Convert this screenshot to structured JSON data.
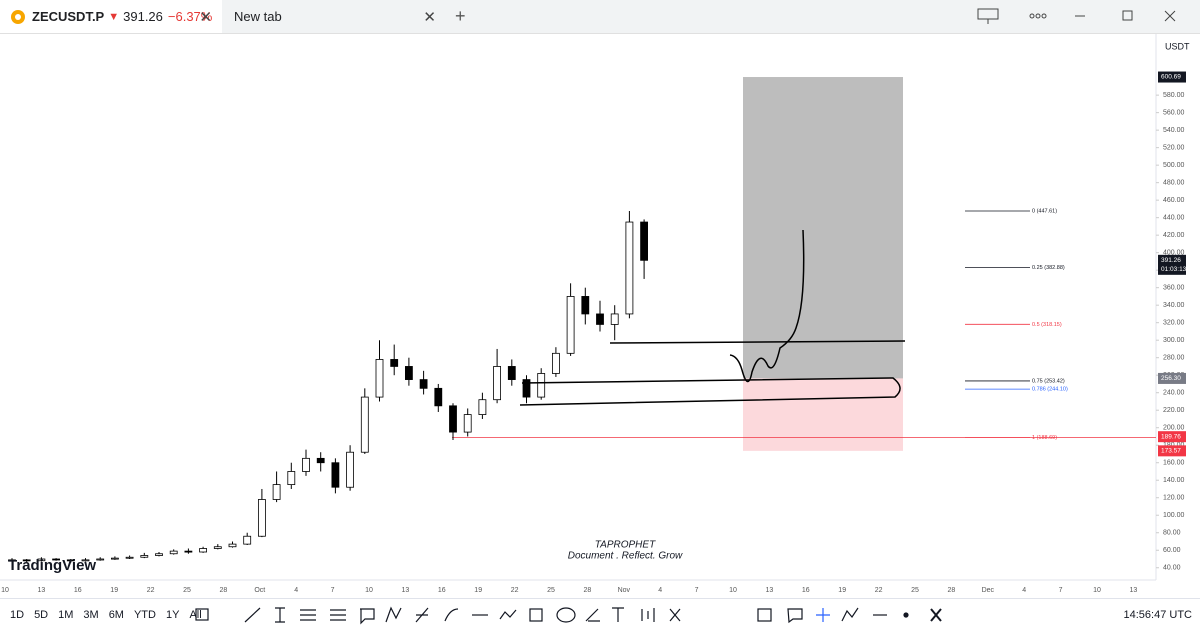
{
  "browser": {
    "tabs": [
      {
        "symbol": "ZECUSDT.P",
        "direction": "▼",
        "price": "391.26",
        "change": "−6.37%"
      },
      {
        "title": "New tab"
      }
    ]
  },
  "chart_data": {
    "type": "candlestick",
    "currency": "USDT",
    "open": [
      48,
      49,
      48,
      50,
      49,
      48,
      49,
      50,
      51,
      52,
      54,
      56,
      59,
      58,
      62,
      64,
      67,
      76,
      118,
      135,
      150,
      165,
      160,
      132,
      172,
      235,
      278,
      270,
      255,
      245,
      225,
      195,
      215,
      232,
      270,
      255,
      235,
      262,
      285,
      350,
      330,
      318,
      330,
      435
    ],
    "high": [
      51,
      50,
      52,
      51,
      50,
      51,
      52,
      53,
      54,
      57,
      58,
      61,
      62,
      64,
      67,
      70,
      80,
      130,
      150,
      160,
      175,
      172,
      165,
      180,
      245,
      300,
      295,
      280,
      265,
      250,
      228,
      222,
      240,
      290,
      278,
      260,
      268,
      292,
      365,
      360,
      345,
      340,
      447.61,
      438
    ],
    "low": [
      47,
      46,
      47,
      48,
      46,
      47,
      48,
      49,
      50,
      51,
      53,
      55,
      56,
      57,
      61,
      63,
      66,
      75,
      115,
      130,
      145,
      150,
      125,
      128,
      170,
      230,
      260,
      248,
      238,
      218,
      186,
      190,
      210,
      228,
      248,
      228,
      232,
      258,
      282,
      318,
      310,
      300,
      325,
      370
    ],
    "close": [
      49,
      48,
      50,
      49,
      48,
      49,
      50,
      51,
      52,
      54,
      56,
      59,
      58,
      62,
      64,
      67,
      76,
      118,
      135,
      150,
      165,
      160,
      132,
      172,
      235,
      278,
      270,
      255,
      245,
      225,
      195,
      215,
      232,
      270,
      255,
      235,
      262,
      285,
      350,
      330,
      318,
      330,
      435,
      391.26
    ],
    "up_color": "#ffffff",
    "down_color": "#000000",
    "ylim": [
      26,
      643
    ],
    "yticks": [
      {
        "value": 40,
        "label": "40.00"
      },
      {
        "value": 60,
        "label": "60.00"
      },
      {
        "value": 80,
        "label": "80.00"
      },
      {
        "value": 100,
        "label": "100.00"
      },
      {
        "value": 120,
        "label": "120.00"
      },
      {
        "value": 140,
        "label": "140.00"
      },
      {
        "value": 160,
        "label": "160.00"
      },
      {
        "value": 180,
        "label": "180.00"
      },
      {
        "value": 200,
        "label": "200.00"
      },
      {
        "value": 220,
        "label": "220.00"
      },
      {
        "value": 240,
        "label": "240.00"
      },
      {
        "value": 260,
        "label": "260.00"
      },
      {
        "value": 280,
        "label": "280.00"
      },
      {
        "value": 300,
        "label": "300.00"
      },
      {
        "value": 320,
        "label": "320.00"
      },
      {
        "value": 340,
        "label": "340.00"
      },
      {
        "value": 360,
        "label": "360.00"
      },
      {
        "value": 380,
        "label": "380.00"
      },
      {
        "value": 400,
        "label": "400.00"
      },
      {
        "value": 420,
        "label": "420.00"
      },
      {
        "value": 440,
        "label": "440.00"
      },
      {
        "value": 460,
        "label": "460.00"
      },
      {
        "value": 480,
        "label": "480.00"
      },
      {
        "value": 500,
        "label": "500.00"
      },
      {
        "value": 520,
        "label": "520.00"
      },
      {
        "value": 540,
        "label": "540.00"
      },
      {
        "value": 560,
        "label": "560.00"
      },
      {
        "value": 580,
        "label": "580.00"
      }
    ],
    "x_axis_labels": [
      "10",
      "13",
      "16",
      "19",
      "22",
      "25",
      "28",
      "Oct",
      "4",
      "7",
      "10",
      "13",
      "16",
      "19",
      "22",
      "25",
      "28",
      "Nov",
      "4",
      "7",
      "10",
      "13",
      "16",
      "19",
      "22",
      "25",
      "28",
      "Dec",
      "4",
      "7",
      "10",
      "13"
    ],
    "price_labels": [
      {
        "value": 600.69,
        "color": "#131722"
      },
      {
        "value": 391.26,
        "color": "#131722",
        "countdown": "01:03:13"
      },
      {
        "value": 256.3,
        "label": "256.30",
        "color": "#787b86"
      },
      {
        "value": 189.76,
        "color": "#f23645"
      },
      {
        "value": 173.57,
        "color": "#f23645"
      }
    ],
    "fibonacci": [
      {
        "value": 447.61,
        "label": "0 (447.61)",
        "color": "#131722"
      },
      {
        "value": 382.88,
        "label": "0.25 (382.88)",
        "color": "#131722"
      },
      {
        "value": 318.15,
        "label": "0.5 (318.15)",
        "color": "#f23645"
      },
      {
        "value": 253.42,
        "label": "0.75 (253.42)",
        "color": "#131722"
      },
      {
        "value": 244.1,
        "label": "0.786 (244.10)",
        "color": "#2962ff"
      },
      {
        "value": 188.69,
        "label": "1 (188.69)",
        "color": "#f23645"
      }
    ],
    "watermark": {
      "title": "TAPROPHET",
      "subtitle": "Document . Reflect. Grow"
    },
    "logo": "TradingView"
  },
  "toolbar": {
    "timeframes": [
      "1D",
      "5D",
      "1M",
      "3M",
      "6M",
      "YTD",
      "1Y",
      "All"
    ],
    "clock": "14:56:47 UTC"
  }
}
